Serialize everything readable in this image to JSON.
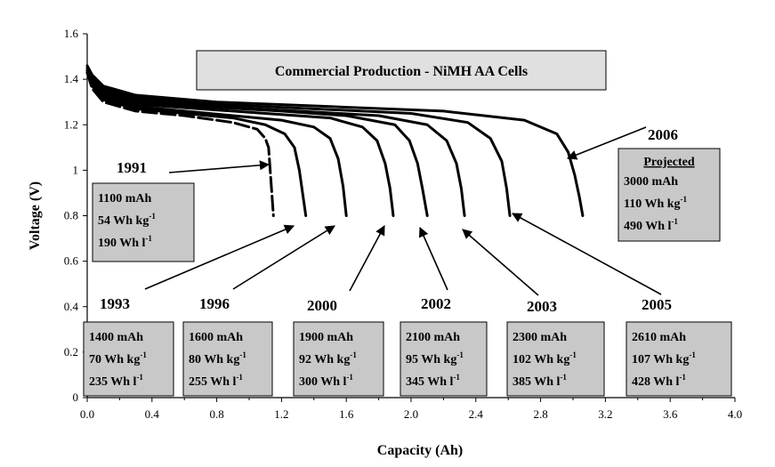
{
  "chart_data": {
    "type": "line",
    "title": "Commercial Production - NiMH AA Cells",
    "xlabel": "Capacity (Ah)",
    "ylabel": "Voltage (V)",
    "xlim": [
      0,
      4.0
    ],
    "ylim": [
      0,
      1.6
    ],
    "x_ticks": [
      "0.0",
      "0.4",
      "0.8",
      "1.2",
      "1.6",
      "2.0",
      "2.4",
      "2.8",
      "3.2",
      "3.6",
      "4.0"
    ],
    "y_ticks": [
      "0",
      "0.2",
      "0.4",
      "0.6",
      "0.8",
      "1",
      "1.2",
      "1.4",
      "1.6"
    ],
    "grid": false,
    "line_color": "#000000",
    "box_fill": "#c8c8c8",
    "series": [
      {
        "name": "1991",
        "x": [
          0,
          0.03,
          0.1,
          0.3,
          0.6,
          0.9,
          1.05,
          1.1,
          1.12,
          1.13,
          1.14,
          1.15
        ],
        "y": [
          1.43,
          1.36,
          1.3,
          1.26,
          1.24,
          1.21,
          1.18,
          1.14,
          1.1,
          1.0,
          0.9,
          0.8
        ]
      },
      {
        "name": "1993",
        "x": [
          0,
          0.03,
          0.1,
          0.3,
          0.6,
          0.9,
          1.1,
          1.22,
          1.28,
          1.31,
          1.33,
          1.35
        ],
        "y": [
          1.43,
          1.37,
          1.31,
          1.27,
          1.25,
          1.23,
          1.2,
          1.16,
          1.1,
          1.0,
          0.9,
          0.8
        ]
      },
      {
        "name": "1996",
        "x": [
          0,
          0.03,
          0.1,
          0.3,
          0.6,
          0.9,
          1.2,
          1.4,
          1.5,
          1.55,
          1.58,
          1.6
        ],
        "y": [
          1.43,
          1.38,
          1.32,
          1.28,
          1.26,
          1.24,
          1.22,
          1.19,
          1.14,
          1.05,
          0.93,
          0.8
        ]
      },
      {
        "name": "2000",
        "x": [
          0,
          0.03,
          0.1,
          0.3,
          0.7,
          1.1,
          1.5,
          1.7,
          1.79,
          1.84,
          1.87,
          1.89
        ],
        "y": [
          1.43,
          1.38,
          1.33,
          1.29,
          1.27,
          1.25,
          1.23,
          1.19,
          1.13,
          1.03,
          0.92,
          0.8
        ]
      },
      {
        "name": "2002",
        "x": [
          0,
          0.03,
          0.1,
          0.3,
          0.7,
          1.2,
          1.6,
          1.9,
          1.99,
          2.04,
          2.07,
          2.1
        ],
        "y": [
          1.44,
          1.39,
          1.34,
          1.3,
          1.28,
          1.26,
          1.24,
          1.2,
          1.13,
          1.03,
          0.92,
          0.8
        ]
      },
      {
        "name": "2003",
        "x": [
          0,
          0.03,
          0.1,
          0.3,
          0.8,
          1.3,
          1.8,
          2.1,
          2.22,
          2.28,
          2.31,
          2.33
        ],
        "y": [
          1.44,
          1.4,
          1.35,
          1.31,
          1.28,
          1.26,
          1.24,
          1.2,
          1.13,
          1.03,
          0.92,
          0.8
        ]
      },
      {
        "name": "2005",
        "x": [
          0,
          0.03,
          0.1,
          0.3,
          0.8,
          1.4,
          2.0,
          2.35,
          2.49,
          2.56,
          2.59,
          2.61
        ],
        "y": [
          1.45,
          1.41,
          1.36,
          1.32,
          1.29,
          1.27,
          1.25,
          1.21,
          1.14,
          1.04,
          0.92,
          0.8
        ]
      },
      {
        "name": "2006",
        "x": [
          0,
          0.03,
          0.1,
          0.3,
          0.8,
          1.5,
          2.2,
          2.7,
          2.9,
          2.97,
          3.01,
          3.04,
          3.06
        ],
        "y": [
          1.46,
          1.42,
          1.37,
          1.33,
          1.3,
          1.28,
          1.26,
          1.22,
          1.16,
          1.08,
          0.98,
          0.88,
          0.8
        ]
      }
    ],
    "annotations": {
      "1991": {
        "label": "1991",
        "lines": [
          "1100 mAh",
          "54 Wh kg",
          "190 Wh l"
        ],
        "sups": [
          "",
          "-1",
          "-1"
        ]
      },
      "1993": {
        "label": "1993",
        "lines": [
          "1400 mAh",
          "70 Wh kg",
          "235 Wh l"
        ],
        "sups": [
          "",
          "-1",
          "-1"
        ]
      },
      "1996": {
        "label": "1996",
        "lines": [
          "1600 mAh",
          "80 Wh kg",
          "255 Wh l"
        ],
        "sups": [
          "",
          "-1",
          "-1"
        ]
      },
      "2000": {
        "label": "2000",
        "lines": [
          "1900 mAh",
          "92 Wh kg",
          "300 Wh l"
        ],
        "sups": [
          "",
          "-1",
          "-1"
        ]
      },
      "2002": {
        "label": "2002",
        "lines": [
          "2100 mAh",
          "95 Wh kg",
          "345 Wh l"
        ],
        "sups": [
          "",
          "-1",
          "-1"
        ]
      },
      "2003": {
        "label": "2003",
        "lines": [
          "2300 mAh",
          "102 Wh kg",
          "385 Wh l"
        ],
        "sups": [
          "",
          "-1",
          "-1"
        ]
      },
      "2005": {
        "label": "2005",
        "lines": [
          "2610 mAh",
          "107 Wh kg",
          "428 Wh l"
        ],
        "sups": [
          "",
          "-1",
          "-1"
        ]
      },
      "2006": {
        "label": "2006",
        "heading": "Projected",
        "lines": [
          "3000 mAh",
          "110 Wh kg",
          "490 Wh l"
        ],
        "sups": [
          "",
          "-1",
          "-1"
        ]
      }
    }
  }
}
